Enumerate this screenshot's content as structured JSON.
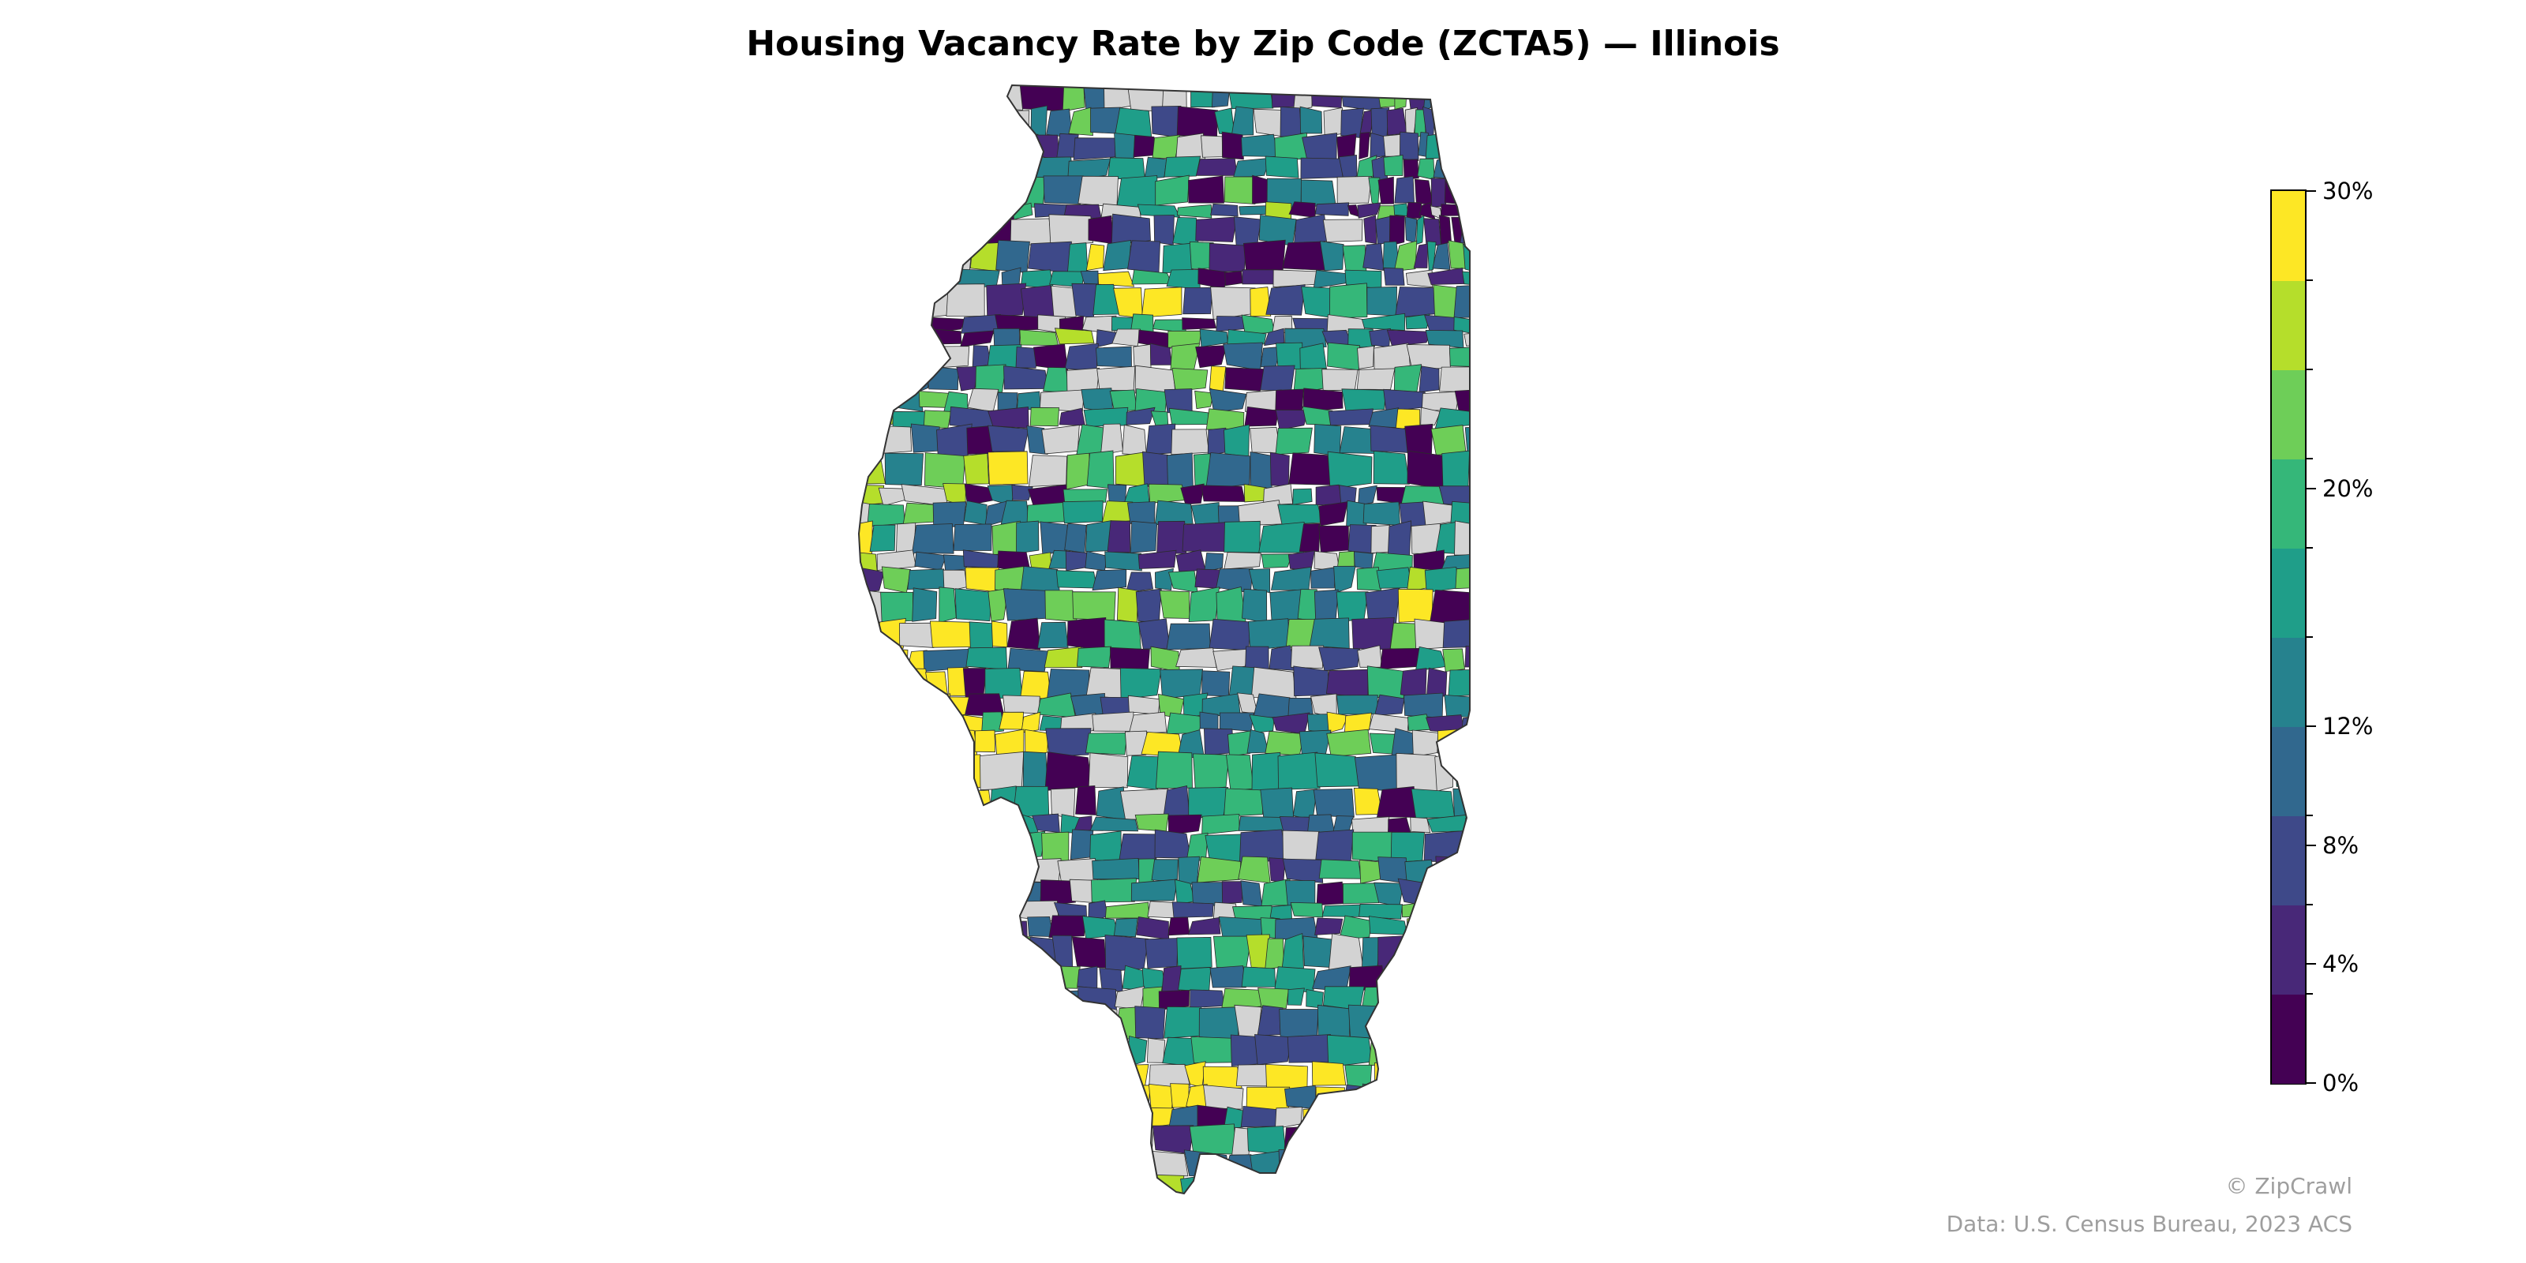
{
  "title": "Housing Vacancy Rate by Zip Code (ZCTA5) — Illinois",
  "legend": {
    "bins": [
      "#440154",
      "#482878",
      "#3e4989",
      "#31688e",
      "#26828e",
      "#1f9e89",
      "#35b779",
      "#6ece58",
      "#b5de2b",
      "#fde725"
    ],
    "no_data_color": "#d3d3d3",
    "range": [
      0,
      30
    ],
    "ticks": [
      {
        "value": 0,
        "label": "0%"
      },
      {
        "value": 4,
        "label": "4%"
      },
      {
        "value": 8,
        "label": "8%"
      },
      {
        "value": 12,
        "label": "12%"
      },
      {
        "value": 20,
        "label": "20%"
      },
      {
        "value": 30,
        "label": "30%"
      }
    ]
  },
  "copyright": "© ZipCrawl",
  "source": "Data: U.S. Census Bureau, 2023 ACS"
}
